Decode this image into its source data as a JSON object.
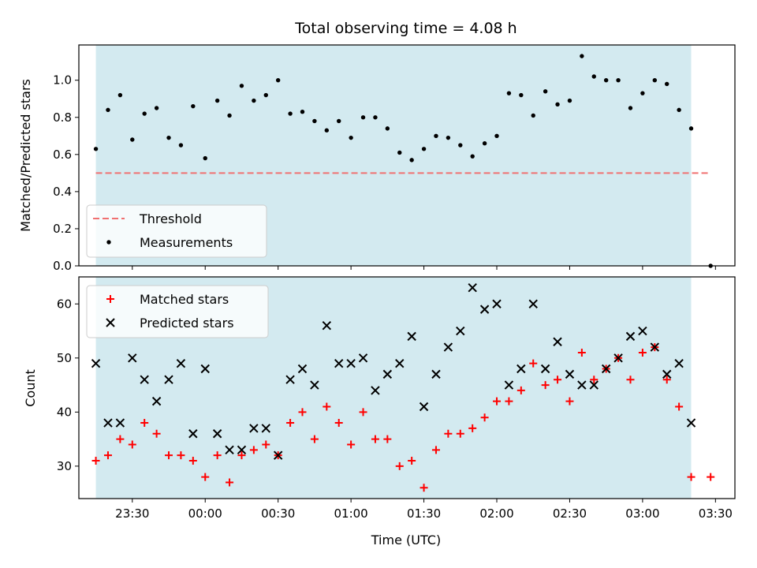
{
  "chart_data": [
    {
      "type": "scatter",
      "title": "Total observing time = 4.08 h",
      "ylabel": "Matched/Predicted stars",
      "xlabel": "",
      "xlim": [
        "23:08",
        "03:38"
      ],
      "ylim": [
        0,
        1.19
      ],
      "yticks": [
        0.0,
        0.2,
        0.4,
        0.6,
        0.8,
        1.0
      ],
      "ytick_labels": [
        "0.0",
        "0.2",
        "0.4",
        "0.6",
        "0.8",
        "1.0"
      ],
      "grid": false,
      "shaded_region": {
        "start": "23:15",
        "end": "03:20",
        "color": "#d3eaf0"
      },
      "threshold": {
        "name": "Threshold",
        "y": 0.5,
        "x_range": [
          "23:15",
          "03:28"
        ],
        "color": "#f07070",
        "style": "dashed"
      },
      "legend": {
        "placement": "lower-left",
        "entries": [
          "Threshold",
          "Measurements"
        ]
      },
      "series": [
        {
          "name": "Measurements",
          "marker": "dot",
          "color": "#000000",
          "points": [
            [
              "23:15",
              0.63
            ],
            [
              "23:20",
              0.84
            ],
            [
              "23:25",
              0.92
            ],
            [
              "23:30",
              0.68
            ],
            [
              "23:35",
              0.82
            ],
            [
              "23:40",
              0.85
            ],
            [
              "23:45",
              0.69
            ],
            [
              "23:50",
              0.65
            ],
            [
              "23:55",
              0.86
            ],
            [
              "00:00",
              0.58
            ],
            [
              "00:05",
              0.89
            ],
            [
              "00:10",
              0.81
            ],
            [
              "00:15",
              0.97
            ],
            [
              "00:20",
              0.89
            ],
            [
              "00:25",
              0.92
            ],
            [
              "00:30",
              1.0
            ],
            [
              "00:35",
              0.82
            ],
            [
              "00:40",
              0.83
            ],
            [
              "00:45",
              0.78
            ],
            [
              "00:50",
              0.73
            ],
            [
              "00:55",
              0.78
            ],
            [
              "01:00",
              0.69
            ],
            [
              "01:05",
              0.8
            ],
            [
              "01:10",
              0.8
            ],
            [
              "01:15",
              0.74
            ],
            [
              "01:20",
              0.61
            ],
            [
              "01:25",
              0.57
            ],
            [
              "01:30",
              0.63
            ],
            [
              "01:35",
              0.7
            ],
            [
              "01:40",
              0.69
            ],
            [
              "01:45",
              0.65
            ],
            [
              "01:50",
              0.59
            ],
            [
              "01:55",
              0.66
            ],
            [
              "02:00",
              0.7
            ],
            [
              "02:05",
              0.93
            ],
            [
              "02:10",
              0.92
            ],
            [
              "02:15",
              0.81
            ],
            [
              "02:20",
              0.94
            ],
            [
              "02:25",
              0.87
            ],
            [
              "02:30",
              0.89
            ],
            [
              "02:35",
              1.13
            ],
            [
              "02:40",
              1.02
            ],
            [
              "02:45",
              1.0
            ],
            [
              "02:50",
              1.0
            ],
            [
              "02:55",
              0.85
            ],
            [
              "03:00",
              0.93
            ],
            [
              "03:05",
              1.0
            ],
            [
              "03:10",
              0.98
            ],
            [
              "03:15",
              0.84
            ],
            [
              "03:20",
              0.74
            ],
            [
              "03:28",
              0.0
            ]
          ]
        }
      ]
    },
    {
      "type": "scatter",
      "title": "",
      "ylabel": "Count",
      "xlabel": "Time (UTC)",
      "xlim": [
        "23:08",
        "03:38"
      ],
      "ylim": [
        24,
        65
      ],
      "yticks": [
        30,
        40,
        50,
        60
      ],
      "ytick_labels": [
        "30",
        "40",
        "50",
        "60"
      ],
      "xticks": [
        "23:30",
        "00:00",
        "00:30",
        "01:00",
        "01:30",
        "02:00",
        "02:30",
        "03:00",
        "03:30"
      ],
      "grid": false,
      "shaded_region": {
        "start": "23:15",
        "end": "03:20",
        "color": "#d3eaf0"
      },
      "legend": {
        "placement": "top-left",
        "entries": [
          "Matched stars",
          "Predicted stars"
        ]
      },
      "series": [
        {
          "name": "Matched stars",
          "marker": "plus",
          "color": "#ff0000",
          "points": [
            [
              "23:15",
              31
            ],
            [
              "23:20",
              32
            ],
            [
              "23:25",
              35
            ],
            [
              "23:30",
              34
            ],
            [
              "23:35",
              38
            ],
            [
              "23:40",
              36
            ],
            [
              "23:45",
              32
            ],
            [
              "23:50",
              32
            ],
            [
              "23:55",
              31
            ],
            [
              "00:00",
              28
            ],
            [
              "00:05",
              32
            ],
            [
              "00:10",
              27
            ],
            [
              "00:15",
              32
            ],
            [
              "00:20",
              33
            ],
            [
              "00:25",
              34
            ],
            [
              "00:30",
              32
            ],
            [
              "00:35",
              38
            ],
            [
              "00:40",
              40
            ],
            [
              "00:45",
              35
            ],
            [
              "00:50",
              41
            ],
            [
              "00:55",
              38
            ],
            [
              "01:00",
              34
            ],
            [
              "01:05",
              40
            ],
            [
              "01:10",
              35
            ],
            [
              "01:15",
              35
            ],
            [
              "01:20",
              30
            ],
            [
              "01:25",
              31
            ],
            [
              "01:30",
              26
            ],
            [
              "01:35",
              33
            ],
            [
              "01:40",
              36
            ],
            [
              "01:45",
              36
            ],
            [
              "01:50",
              37
            ],
            [
              "01:55",
              39
            ],
            [
              "02:00",
              42
            ],
            [
              "02:05",
              42
            ],
            [
              "02:10",
              44
            ],
            [
              "02:15",
              49
            ],
            [
              "02:20",
              45
            ],
            [
              "02:25",
              46
            ],
            [
              "02:30",
              42
            ],
            [
              "02:35",
              51
            ],
            [
              "02:40",
              46
            ],
            [
              "02:45",
              48
            ],
            [
              "02:50",
              50
            ],
            [
              "02:55",
              46
            ],
            [
              "03:00",
              51
            ],
            [
              "03:05",
              52
            ],
            [
              "03:10",
              46
            ],
            [
              "03:15",
              41
            ],
            [
              "03:20",
              28
            ],
            [
              "03:28",
              28
            ]
          ]
        },
        {
          "name": "Predicted stars",
          "marker": "x",
          "color": "#000000",
          "points": [
            [
              "23:15",
              49
            ],
            [
              "23:20",
              38
            ],
            [
              "23:25",
              38
            ],
            [
              "23:30",
              50
            ],
            [
              "23:35",
              46
            ],
            [
              "23:40",
              42
            ],
            [
              "23:45",
              46
            ],
            [
              "23:50",
              49
            ],
            [
              "23:55",
              36
            ],
            [
              "00:00",
              48
            ],
            [
              "00:05",
              36
            ],
            [
              "00:10",
              33
            ],
            [
              "00:15",
              33
            ],
            [
              "00:20",
              37
            ],
            [
              "00:25",
              37
            ],
            [
              "00:30",
              32
            ],
            [
              "00:35",
              46
            ],
            [
              "00:40",
              48
            ],
            [
              "00:45",
              45
            ],
            [
              "00:50",
              56
            ],
            [
              "00:55",
              49
            ],
            [
              "01:00",
              49
            ],
            [
              "01:05",
              50
            ],
            [
              "01:10",
              44
            ],
            [
              "01:15",
              47
            ],
            [
              "01:20",
              49
            ],
            [
              "01:25",
              54
            ],
            [
              "01:30",
              41
            ],
            [
              "01:35",
              47
            ],
            [
              "01:40",
              52
            ],
            [
              "01:45",
              55
            ],
            [
              "01:50",
              63
            ],
            [
              "01:55",
              59
            ],
            [
              "02:00",
              60
            ],
            [
              "02:05",
              45
            ],
            [
              "02:10",
              48
            ],
            [
              "02:15",
              60
            ],
            [
              "02:20",
              48
            ],
            [
              "02:25",
              53
            ],
            [
              "02:30",
              47
            ],
            [
              "02:35",
              45
            ],
            [
              "02:40",
              45
            ],
            [
              "02:45",
              48
            ],
            [
              "02:50",
              50
            ],
            [
              "02:55",
              54
            ],
            [
              "03:00",
              55
            ],
            [
              "03:05",
              52
            ],
            [
              "03:10",
              47
            ],
            [
              "03:15",
              49
            ],
            [
              "03:20",
              38
            ]
          ]
        }
      ]
    }
  ]
}
